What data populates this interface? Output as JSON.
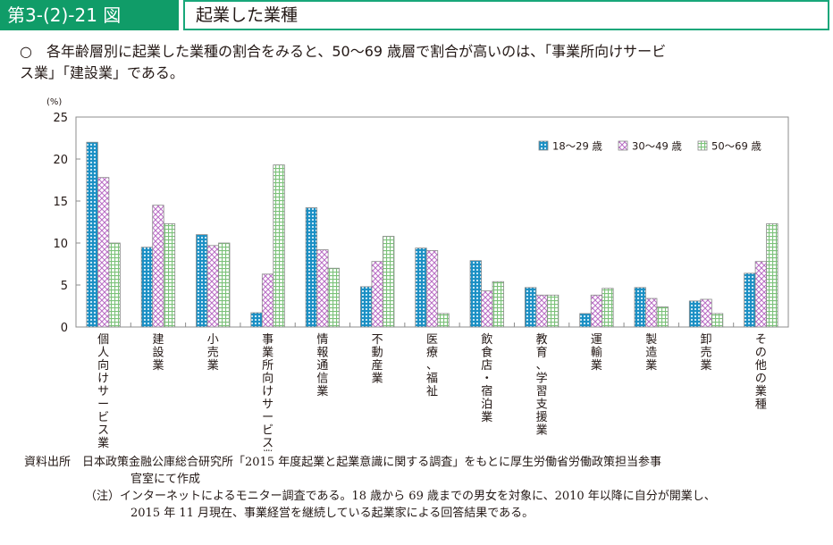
{
  "header": {
    "figure_number": "第3-(2)-21 図",
    "title": "起業した業種"
  },
  "summary": {
    "bullet": "○",
    "line1": "各年齢層別に起業した業種の割合をみると、50～69 歳層で割合が高いのは、「事業所向けサービ",
    "line2": "ス業」「建設業」である。"
  },
  "colors": {
    "header_green": "#109c68",
    "series_18_29": "#1a8fc4",
    "series_30_49": "#b86bc4",
    "series_50_69": "#7cc27a"
  },
  "chart_data": {
    "type": "bar",
    "title": "",
    "ylabel": "(%)",
    "xlabel": "",
    "ylim": [
      0,
      25
    ],
    "yticks": [
      0,
      5,
      10,
      15,
      20,
      25
    ],
    "grid": false,
    "legend_position": "top-right",
    "categories": [
      "個人向けサービス業",
      "建設業",
      "小売業",
      "事業所向けサービス業",
      "情報通信業",
      "不動産業",
      "医療、福祉",
      "飲食店・宿泊業",
      "教育、学習支援業",
      "運輸業",
      "製造業",
      "卸売業",
      "その他の業種"
    ],
    "series": [
      {
        "name": "18～29 歳",
        "values": [
          22.0,
          9.5,
          11.0,
          1.7,
          14.2,
          4.8,
          9.4,
          7.9,
          4.7,
          1.6,
          4.7,
          3.1,
          6.4
        ]
      },
      {
        "name": "30～49 歳",
        "values": [
          17.8,
          14.5,
          9.7,
          6.3,
          9.2,
          7.8,
          9.1,
          4.3,
          3.8,
          3.8,
          3.4,
          3.3,
          7.8
        ]
      },
      {
        "name": "50～69 歳",
        "values": [
          10.0,
          12.3,
          10.0,
          19.3,
          7.0,
          10.8,
          1.6,
          5.4,
          3.8,
          4.6,
          2.4,
          1.6,
          12.3
        ]
      }
    ]
  },
  "footer": {
    "source_label": "資料出所",
    "source_text1": "日本政策金融公庫総合研究所「2015 年度起業と起業意識に関する調査」をもとに厚生労働省労働政策担当参事",
    "source_text2": "官室にて作成",
    "note_label": "（注）",
    "note_text1": "インターネットによるモニター調査である。18 歳から 69 歳までの男女を対象に、2010 年以降に自分が開業し、",
    "note_text2": "2015 年 11 月現在、事業経営を継続している起業家による回答結果である。"
  }
}
